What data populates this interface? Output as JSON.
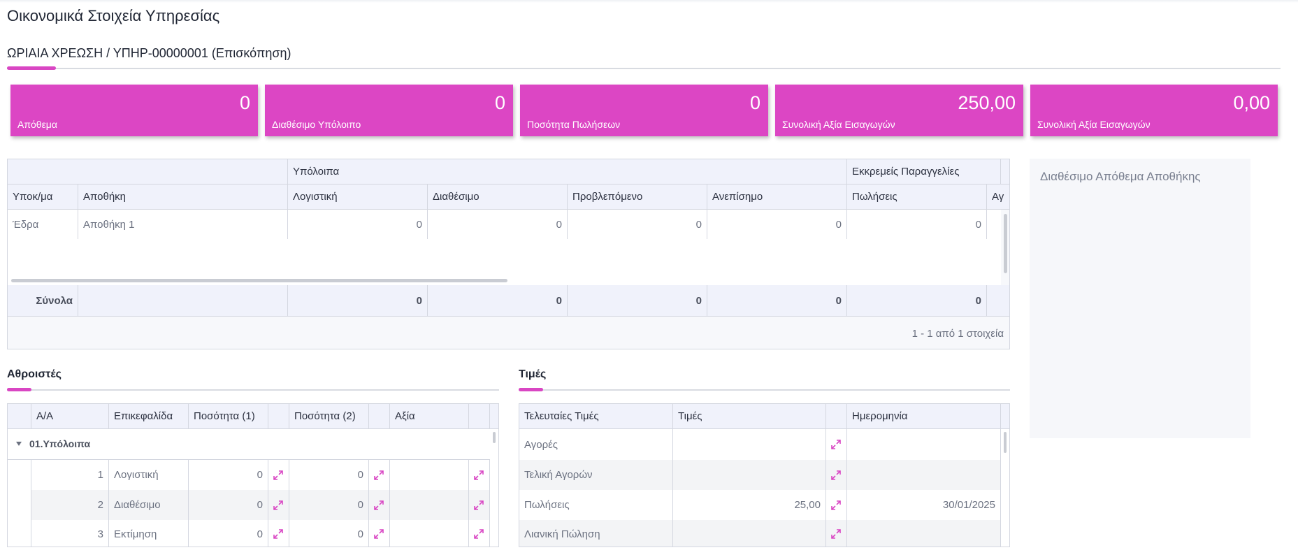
{
  "page": {
    "title": "Οικονομικά Στοιχεία Υπηρεσίας"
  },
  "record": {
    "title": "ΩΡΙΑΙΑ ΧΡΕΩΣΗ / ΥΠΗΡ-00000001 (Επισκόπηση)"
  },
  "accent_color": "#dc46c4",
  "cards": [
    {
      "value": "0",
      "label": "Απόθεμα"
    },
    {
      "value": "0",
      "label": "Διαθέσιμο Υπόλοιπο"
    },
    {
      "value": "0",
      "label": "Ποσότητα Πωλήσεων"
    },
    {
      "value": "250,00",
      "label": "Συνολική Αξία Εισαγωγών"
    },
    {
      "value": "0,00",
      "label": "Συνολική Αξία Εισαγωγών"
    }
  ],
  "stock_grid": {
    "group_headers": {
      "balances": "Υπόλοιπα",
      "pending": "Εκκρεμείς Παραγγελίες"
    },
    "columns": [
      "Υποκ/μα",
      "Αποθήκη",
      "Λογιστική",
      "Διαθέσιμο",
      "Προβλεπόμενο",
      "Ανεπίσημο",
      "Πωλήσεις",
      "Αγ"
    ],
    "rows": [
      {
        "branch": "Έδρα",
        "warehouse": "Αποθήκη 1",
        "accounting": "0",
        "available": "0",
        "projected": "0",
        "unofficial": "0",
        "sales": "0"
      }
    ],
    "totals": {
      "label": "Σύνολα",
      "accounting": "0",
      "available": "0",
      "projected": "0",
      "unofficial": "0",
      "sales": "0"
    },
    "pager": "1 - 1 από 1 στοιχεία"
  },
  "counters": {
    "title": "Αθροιστές",
    "columns": [
      "Α/Α",
      "Επικεφαλίδα",
      "Ποσότητα (1)",
      "Ποσότητα (2)",
      "Αξία"
    ],
    "group": "01.Υπόλοιπα",
    "rows": [
      {
        "no": "1",
        "heading": "Λογιστική",
        "qty1": "0",
        "qty2": "0"
      },
      {
        "no": "2",
        "heading": "Διαθέσιμο",
        "qty1": "0",
        "qty2": "0"
      },
      {
        "no": "3",
        "heading": "Εκτίμηση",
        "qty1": "0",
        "qty2": "0"
      }
    ]
  },
  "prices": {
    "title": "Τιμές",
    "columns": [
      "Τελευταίες Τιμές",
      "Τιμές",
      "Ημερομηνία"
    ],
    "rows": [
      {
        "name": "Αγορές",
        "price": "",
        "date": ""
      },
      {
        "name": "Τελική Αγορών",
        "price": "",
        "date": ""
      },
      {
        "name": "Πωλήσεις",
        "price": "25,00",
        "date": "30/01/2025"
      },
      {
        "name": "Λιανική Πώληση",
        "price": "",
        "date": ""
      }
    ]
  },
  "side_panel": {
    "title": "Διαθέσιμο Απόθεμα Αποθήκης"
  }
}
